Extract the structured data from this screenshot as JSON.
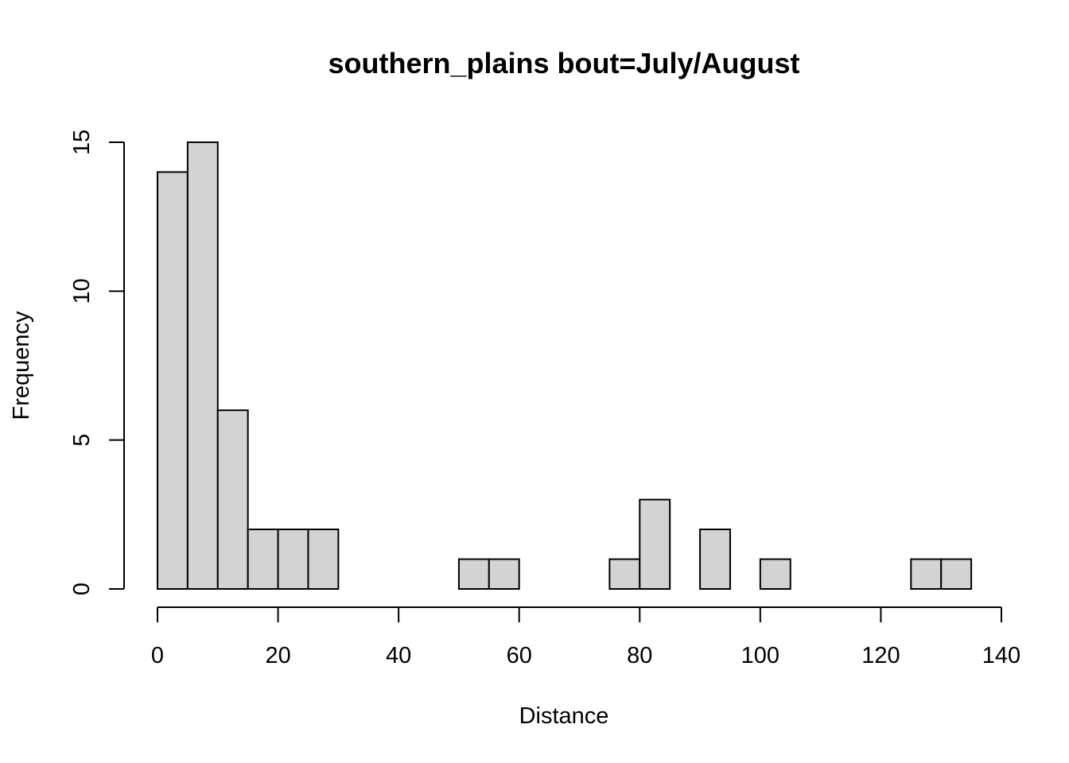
{
  "chart_data": {
    "type": "bar",
    "title": "southern_plains  bout=July/August",
    "xlabel": "Distance",
    "ylabel": "Frequency",
    "bin_width": 5,
    "bins": [
      {
        "start": 0,
        "end": 5,
        "count": 14
      },
      {
        "start": 5,
        "end": 10,
        "count": 15
      },
      {
        "start": 10,
        "end": 15,
        "count": 6
      },
      {
        "start": 15,
        "end": 20,
        "count": 2
      },
      {
        "start": 20,
        "end": 25,
        "count": 2
      },
      {
        "start": 25,
        "end": 30,
        "count": 2
      },
      {
        "start": 30,
        "end": 35,
        "count": 0
      },
      {
        "start": 35,
        "end": 40,
        "count": 0
      },
      {
        "start": 40,
        "end": 45,
        "count": 0
      },
      {
        "start": 45,
        "end": 50,
        "count": 0
      },
      {
        "start": 50,
        "end": 55,
        "count": 1
      },
      {
        "start": 55,
        "end": 60,
        "count": 1
      },
      {
        "start": 60,
        "end": 65,
        "count": 0
      },
      {
        "start": 65,
        "end": 70,
        "count": 0
      },
      {
        "start": 70,
        "end": 75,
        "count": 0
      },
      {
        "start": 75,
        "end": 80,
        "count": 1
      },
      {
        "start": 80,
        "end": 85,
        "count": 3
      },
      {
        "start": 85,
        "end": 90,
        "count": 0
      },
      {
        "start": 90,
        "end": 95,
        "count": 2
      },
      {
        "start": 95,
        "end": 100,
        "count": 0
      },
      {
        "start": 100,
        "end": 105,
        "count": 1
      },
      {
        "start": 105,
        "end": 110,
        "count": 0
      },
      {
        "start": 110,
        "end": 115,
        "count": 0
      },
      {
        "start": 115,
        "end": 120,
        "count": 0
      },
      {
        "start": 120,
        "end": 125,
        "count": 0
      },
      {
        "start": 125,
        "end": 130,
        "count": 1
      },
      {
        "start": 130,
        "end": 135,
        "count": 1
      }
    ],
    "xlim": [
      0,
      140
    ],
    "ylim": [
      0,
      15
    ],
    "x_ticks": [
      0,
      20,
      40,
      60,
      80,
      100,
      120,
      140
    ],
    "y_ticks": [
      0,
      5,
      10,
      15
    ],
    "grid": false,
    "legend": "none",
    "colors": {
      "bar_fill": "#d3d3d3",
      "bar_stroke": "#000000"
    }
  }
}
